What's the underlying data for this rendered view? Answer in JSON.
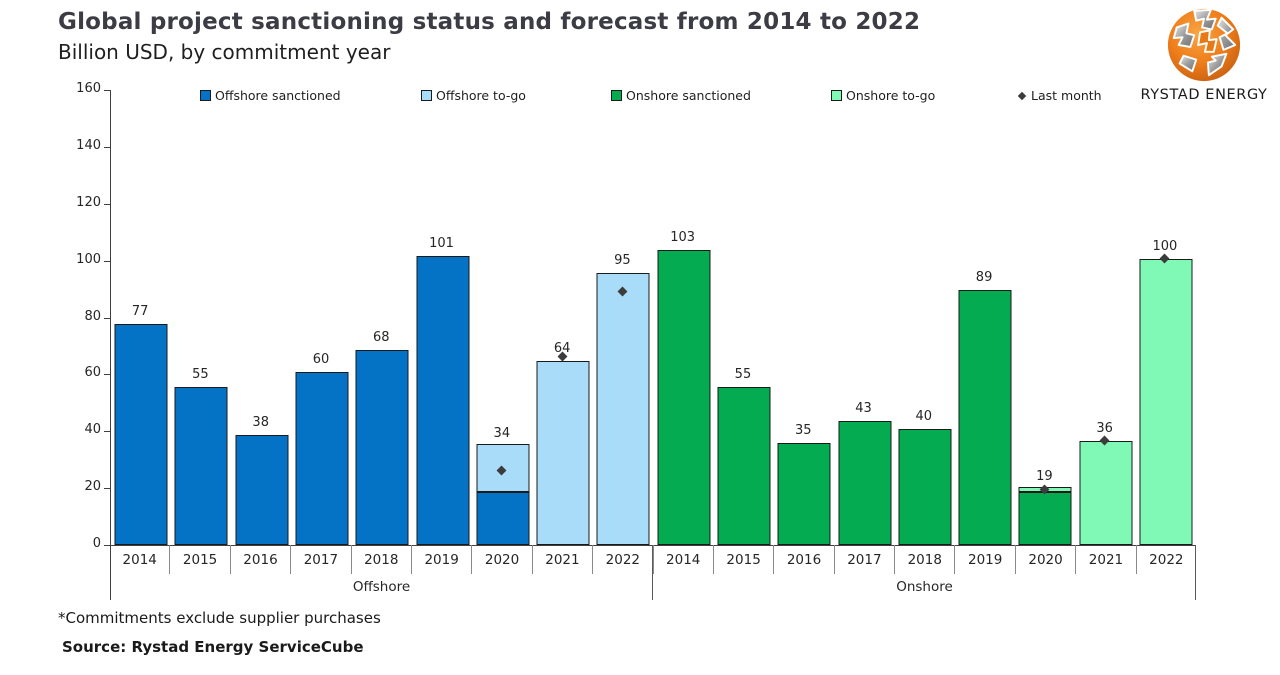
{
  "header": {
    "title": "Global project sanctioning status and forecast from 2014 to 2022",
    "subtitle": "Billion USD, by commitment year"
  },
  "logo": {
    "name": "RYSTAD ENERGY"
  },
  "footer": {
    "note": "*Commitments exclude supplier purchases",
    "source": "Source: Rystad Energy ServiceCube"
  },
  "colors": {
    "offshore_sanctioned": "#0473C5",
    "offshore_togo": "#A8DCF8",
    "onshore_sanctioned": "#05AB50",
    "onshore_togo": "#7FF9B5",
    "last_month": "#3C3C3C",
    "bar_border": "#1A1A1A"
  },
  "chart_data": {
    "type": "bar",
    "title": "Global project sanctioning status and forecast from 2014 to 2022",
    "subtitle": "Billion USD, by commitment year",
    "ylabel": "Billion USD",
    "ylim": [
      0,
      160
    ],
    "yticks": [
      0,
      20,
      40,
      60,
      80,
      100,
      120,
      140,
      160
    ],
    "grid": false,
    "legend_position": "top",
    "legend": [
      {
        "label": "Offshore sanctioned",
        "color_key": "offshore_sanctioned",
        "marker": "square"
      },
      {
        "label": "Offshore to-go",
        "color_key": "offshore_togo",
        "marker": "square"
      },
      {
        "label": "Onshore sanctioned",
        "color_key": "onshore_sanctioned",
        "marker": "square"
      },
      {
        "label": "Onshore to-go",
        "color_key": "onshore_togo",
        "marker": "square"
      },
      {
        "label": "Last month",
        "color_key": "last_month",
        "marker": "diamond"
      }
    ],
    "groups": [
      {
        "label": "Offshore",
        "years": [
          "2014",
          "2015",
          "2016",
          "2017",
          "2018",
          "2019",
          "2020",
          "2021",
          "2022"
        ],
        "sanctioned": [
          77,
          55,
          38,
          60,
          68,
          101,
          18,
          0,
          0
        ],
        "to_go": [
          0,
          0,
          0,
          0,
          0,
          0,
          16,
          64,
          95
        ],
        "total_labels": [
          "77",
          "55",
          "38",
          "60",
          "68",
          "101",
          "34",
          "64",
          "95"
        ],
        "last_month": [
          null,
          null,
          null,
          null,
          null,
          null,
          26,
          66,
          89
        ],
        "sanctioned_color_key": "offshore_sanctioned",
        "togo_color_key": "offshore_togo"
      },
      {
        "label": "Onshore",
        "years": [
          "2014",
          "2015",
          "2016",
          "2017",
          "2018",
          "2019",
          "2020",
          "2021",
          "2022"
        ],
        "sanctioned": [
          103,
          55,
          35,
          43,
          40,
          89,
          18,
          0,
          0
        ],
        "to_go": [
          0,
          0,
          0,
          0,
          0,
          0,
          1,
          36,
          100
        ],
        "total_labels": [
          "103",
          "55",
          "35",
          "43",
          "40",
          "89",
          "19",
          "36",
          "100"
        ],
        "last_month": [
          null,
          null,
          null,
          null,
          null,
          null,
          19.5,
          36.5,
          100.5
        ],
        "sanctioned_color_key": "onshore_sanctioned",
        "togo_color_key": "onshore_togo"
      }
    ]
  }
}
